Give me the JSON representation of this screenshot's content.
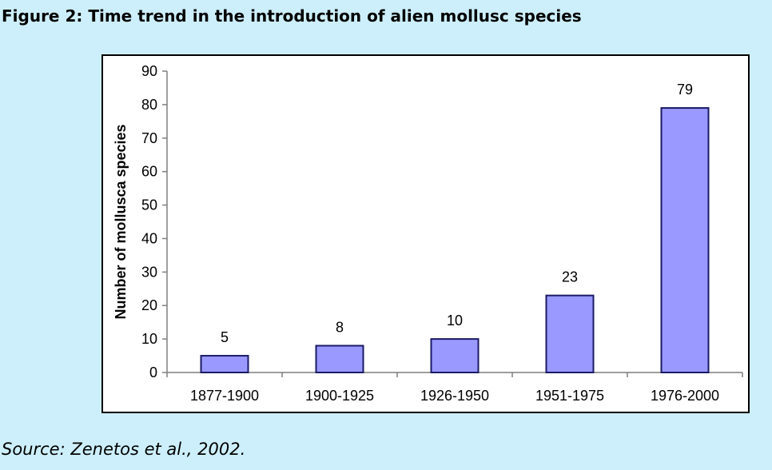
{
  "figure": {
    "title": "Figure 2: Time trend in the introduction of alien mollusc species",
    "source": "Source: Zenetos et al., 2002."
  },
  "colors": {
    "page_background": "#cdeffb",
    "bar_fill": "#9999ff",
    "bar_stroke": "#1a1a66",
    "axis": "#7f7f7f"
  },
  "chart_data": {
    "type": "bar",
    "title": "",
    "xlabel": "",
    "ylabel": "Number of mollusca species",
    "categories": [
      "1877-1900",
      "1900-1925",
      "1926-1950",
      "1951-1975",
      "1976-2000"
    ],
    "values": [
      5,
      8,
      10,
      23,
      79
    ],
    "data_labels": [
      "5",
      "8",
      "10",
      "23",
      "79"
    ],
    "ylim": [
      0,
      90
    ],
    "yticks": [
      0,
      10,
      20,
      30,
      40,
      50,
      60,
      70,
      80,
      90
    ],
    "grid": false,
    "legend": "none"
  }
}
